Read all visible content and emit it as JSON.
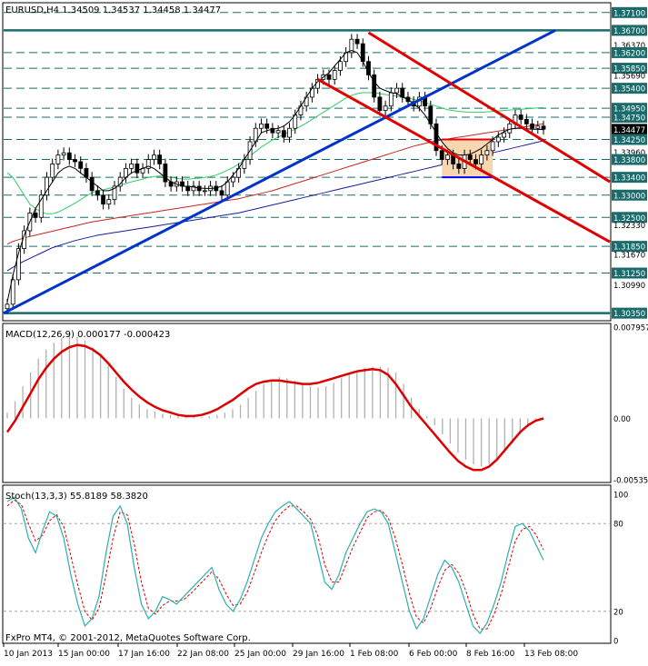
{
  "chart_data": {
    "type": "candlestick",
    "header": {
      "symbol_line": "EURUSD,H4  1.34509 1.34537 1.34458 1.34477"
    },
    "price_panel": {
      "ylim": [
        1.302,
        1.373
      ],
      "current_price": "1.34477",
      "tick_labels": [
        "1.37100",
        "1.36700",
        "1.36370",
        "1.36200",
        "1.35850",
        "1.35690",
        "1.35400",
        "1.34950",
        "1.34750",
        "1.34477",
        "1.34250",
        "1.33960",
        "1.33800",
        "1.33400",
        "1.33000",
        "1.32500",
        "1.32330",
        "1.31850",
        "1.31670",
        "1.31250",
        "1.30990",
        "1.30350"
      ],
      "highlighted_levels": [
        "1.37100",
        "1.36700",
        "1.36200",
        "1.35850",
        "1.35400",
        "1.34950",
        "1.34750",
        "1.34250",
        "1.33800",
        "1.33400",
        "1.33000",
        "1.32500",
        "1.31850",
        "1.31250",
        "1.30350"
      ],
      "colors": {
        "up_trend_line": "#0033cc",
        "channel": "#e00000",
        "ma_fast": "#000000",
        "ma_green": "#33cc66",
        "ma_red": "#cc2222",
        "ma_blue": "#1a1aa0",
        "box_fill": "#f7d7b0",
        "box_border": "#e00000",
        "support_line": "#0000ff"
      },
      "closes": [
        1.3055,
        1.311,
        1.318,
        1.322,
        1.326,
        1.325,
        1.33,
        1.334,
        1.337,
        1.339,
        1.3395,
        1.338,
        1.3375,
        1.336,
        1.334,
        1.331,
        1.33,
        1.328,
        1.329,
        1.332,
        1.334,
        1.336,
        1.337,
        1.335,
        1.336,
        1.338,
        1.339,
        1.337,
        1.333,
        1.332,
        1.333,
        1.332,
        1.331,
        1.332,
        1.331,
        1.331,
        1.332,
        1.331,
        1.33,
        1.333,
        1.334,
        1.336,
        1.338,
        1.342,
        1.345,
        1.346,
        1.345,
        1.344,
        1.3445,
        1.343,
        1.345,
        1.348,
        1.35,
        1.352,
        1.354,
        1.356,
        1.357,
        1.356,
        1.358,
        1.36,
        1.362,
        1.365,
        1.364,
        1.36,
        1.357,
        1.352,
        1.349,
        1.35,
        1.353,
        1.354,
        1.352,
        1.351,
        1.35,
        1.352,
        1.35,
        1.346,
        1.34,
        1.338,
        1.339,
        1.337,
        1.336,
        1.339,
        1.338,
        1.337,
        1.339,
        1.34,
        1.342,
        1.343,
        1.344,
        1.346,
        1.348,
        1.347,
        1.346,
        1.345,
        1.3455,
        1.3448
      ],
      "ma_fast": [
        1.306,
        1.312,
        1.317,
        1.321,
        1.324,
        1.327,
        1.329,
        1.331,
        1.333,
        1.335,
        1.336,
        1.3365,
        1.336,
        1.335,
        1.334,
        1.333,
        1.332,
        1.331,
        1.331,
        1.3315,
        1.3325,
        1.334,
        1.335,
        1.3355,
        1.336,
        1.3365,
        1.336,
        1.335,
        1.334,
        1.333,
        1.3325,
        1.332,
        1.332,
        1.3318,
        1.3316,
        1.3315,
        1.3315,
        1.3316,
        1.332,
        1.333,
        1.3345,
        1.336,
        1.338,
        1.34,
        1.342,
        1.344,
        1.3445,
        1.3448,
        1.345,
        1.3455,
        1.3465,
        1.348,
        1.35,
        1.352,
        1.354,
        1.3555,
        1.3565,
        1.3575,
        1.359,
        1.3605,
        1.362,
        1.3625,
        1.362,
        1.36,
        1.3575,
        1.3555,
        1.354,
        1.3535,
        1.353,
        1.3528,
        1.352,
        1.3515,
        1.3505,
        1.3495,
        1.348,
        1.346,
        1.344,
        1.342,
        1.3405,
        1.3395,
        1.339,
        1.339,
        1.3392,
        1.3398,
        1.3405,
        1.3415,
        1.3425,
        1.3435,
        1.3442,
        1.3448,
        1.345,
        1.345,
        1.3449,
        1.3448,
        1.3448,
        1.3447
      ],
      "ma_green": [
        1.335,
        1.334,
        1.332,
        1.33,
        1.328,
        1.327,
        1.3262,
        1.3258,
        1.3258,
        1.3262,
        1.3268,
        1.3275,
        1.3282,
        1.329,
        1.3298,
        1.3305,
        1.331,
        1.3312,
        1.3315,
        1.3318,
        1.3322,
        1.3326,
        1.333,
        1.3333,
        1.3336,
        1.334,
        1.3342,
        1.3343,
        1.3342,
        1.334,
        1.3338,
        1.3336,
        1.3336,
        1.3337,
        1.3338,
        1.334,
        1.3342,
        1.3345,
        1.335,
        1.3356,
        1.3362,
        1.337,
        1.3378,
        1.3388,
        1.3398,
        1.3408,
        1.3416,
        1.3424,
        1.343,
        1.3436,
        1.3442,
        1.3448,
        1.3455,
        1.3462,
        1.347,
        1.3478,
        1.3486,
        1.3494,
        1.3502,
        1.351,
        1.3518,
        1.3524,
        1.3528,
        1.353,
        1.353,
        1.353,
        1.3528,
        1.3526,
        1.3524,
        1.3522,
        1.352,
        1.3518,
        1.3515,
        1.3512,
        1.3508,
        1.3504,
        1.35,
        1.3496,
        1.3492,
        1.349,
        1.3488,
        1.3487,
        1.3486,
        1.3486,
        1.3486,
        1.3487,
        1.3488,
        1.3489,
        1.349,
        1.3491,
        1.3492,
        1.3493,
        1.3494,
        1.3495,
        1.3496,
        1.3497
      ],
      "ma_red": [
        1.319,
        1.3196,
        1.32,
        1.3204,
        1.3207,
        1.321,
        1.3213,
        1.3216,
        1.3219,
        1.3222,
        1.3225,
        1.3228,
        1.3231,
        1.3234,
        1.3237,
        1.324,
        1.3242,
        1.3244,
        1.3246,
        1.3248,
        1.325,
        1.3252,
        1.3254,
        1.3256,
        1.3258,
        1.326,
        1.3262,
        1.3264,
        1.3266,
        1.3268,
        1.327,
        1.3272,
        1.3274,
        1.3276,
        1.3278,
        1.328,
        1.3282,
        1.3284,
        1.3286,
        1.3288,
        1.329,
        1.3292,
        1.3295,
        1.3298,
        1.3301,
        1.3304,
        1.3307,
        1.331,
        1.3314,
        1.3318,
        1.3322,
        1.3326,
        1.333,
        1.3334,
        1.3338,
        1.3342,
        1.3346,
        1.335,
        1.3354,
        1.3358,
        1.3362,
        1.3366,
        1.337,
        1.3374,
        1.3378,
        1.3382,
        1.3386,
        1.339,
        1.3394,
        1.3398,
        1.3402,
        1.3406,
        1.341,
        1.3413,
        1.3416,
        1.3419,
        1.3422,
        1.3424,
        1.3426,
        1.3428,
        1.343,
        1.3432,
        1.3434,
        1.3436,
        1.3438,
        1.344,
        1.3442,
        1.3444,
        1.3446,
        1.3448,
        1.345,
        1.3452,
        1.3454,
        1.3456,
        1.3458,
        1.346
      ],
      "ma_blue": [
        1.313,
        1.3138,
        1.3145,
        1.3152,
        1.3158,
        1.3164,
        1.317,
        1.3176,
        1.3182,
        1.3186,
        1.319,
        1.3194,
        1.3198,
        1.3201,
        1.3204,
        1.3207,
        1.321,
        1.3212,
        1.3214,
        1.3216,
        1.3218,
        1.322,
        1.3222,
        1.3224,
        1.3226,
        1.3228,
        1.323,
        1.3232,
        1.3234,
        1.3236,
        1.3238,
        1.324,
        1.3242,
        1.3244,
        1.3246,
        1.3248,
        1.325,
        1.3252,
        1.3254,
        1.3256,
        1.3258,
        1.326,
        1.3263,
        1.3266,
        1.3269,
        1.3272,
        1.3275,
        1.3278,
        1.3281,
        1.3284,
        1.3287,
        1.329,
        1.3293,
        1.3296,
        1.3299,
        1.3302,
        1.3305,
        1.3308,
        1.3311,
        1.3314,
        1.3317,
        1.332,
        1.3323,
        1.3326,
        1.3329,
        1.3332,
        1.3335,
        1.3338,
        1.3341,
        1.3344,
        1.3347,
        1.335,
        1.3353,
        1.3356,
        1.3359,
        1.3362,
        1.3365,
        1.3368,
        1.3371,
        1.3374,
        1.3377,
        1.338,
        1.3383,
        1.3386,
        1.3389,
        1.3392,
        1.3395,
        1.3398,
        1.3401,
        1.3404,
        1.3407,
        1.341,
        1.3413,
        1.3416,
        1.3419,
        1.3422
      ]
    },
    "macd_panel": {
      "label": "MACD(12,26,9) 0.000177 -0.000423",
      "tick_labels": [
        "0.007957",
        "0.00",
        "-0.00535"
      ],
      "ylim": [
        -0.00535,
        0.007957
      ],
      "zero": 0.0,
      "histogram": [
        0.0005,
        0.0015,
        0.0028,
        0.004,
        0.0052,
        0.006,
        0.0066,
        0.007,
        0.0072,
        0.0071,
        0.0068,
        0.0062,
        0.0055,
        0.0046,
        0.0036,
        0.0026,
        0.0018,
        0.0012,
        0.0008,
        0.0006,
        0.0004,
        0.0003,
        0.0002,
        0.0001,
        0.0001,
        0.0001,
        0.0002,
        0.0003,
        0.0005,
        0.0008,
        0.0012,
        0.0018,
        0.0024,
        0.003,
        0.0034,
        0.0036,
        0.0035,
        0.0033,
        0.003,
        0.0028,
        0.0027,
        0.0028,
        0.0031,
        0.0035,
        0.0039,
        0.0042,
        0.0044,
        0.0045,
        0.0045,
        0.0044,
        0.004,
        0.003,
        0.0018,
        0.0008,
        0.0002,
        -0.0006,
        -0.0014,
        -0.0022,
        -0.003,
        -0.0036,
        -0.004,
        -0.0042,
        -0.004,
        -0.0036,
        -0.003,
        -0.0022,
        -0.0014,
        -0.0008,
        -0.0003,
        -0.0001
      ],
      "signal": [
        -0.0012,
        -0.0002,
        0.001,
        0.0022,
        0.0034,
        0.0044,
        0.0052,
        0.0058,
        0.0062,
        0.0064,
        0.0063,
        0.006,
        0.0055,
        0.0048,
        0.004,
        0.0032,
        0.0025,
        0.0019,
        0.0014,
        0.001,
        0.0007,
        0.0005,
        0.0003,
        0.0002,
        0.0002,
        0.0003,
        0.0005,
        0.0008,
        0.0012,
        0.0016,
        0.0021,
        0.0026,
        0.003,
        0.0032,
        0.0033,
        0.0033,
        0.0032,
        0.0031,
        0.003,
        0.003,
        0.0031,
        0.0033,
        0.0035,
        0.0037,
        0.0039,
        0.0041,
        0.0042,
        0.0043,
        0.0042,
        0.0038,
        0.003,
        0.002,
        0.001,
        0.0002,
        -0.0006,
        -0.0014,
        -0.0022,
        -0.003,
        -0.0037,
        -0.0042,
        -0.0045,
        -0.0045,
        -0.0042,
        -0.0036,
        -0.0028,
        -0.002,
        -0.0012,
        -0.0006,
        -0.0002,
        0.0
      ]
    },
    "stoch_panel": {
      "label": "Stoch(13,3,3) 55.8189 58.3820",
      "tick_labels": [
        "100",
        "80",
        "20",
        "0"
      ],
      "ylim": [
        0,
        100
      ],
      "main": [
        95,
        98,
        90,
        70,
        60,
        75,
        88,
        85,
        70,
        45,
        25,
        10,
        15,
        30,
        60,
        85,
        92,
        80,
        50,
        25,
        15,
        20,
        30,
        28,
        25,
        30,
        35,
        40,
        45,
        50,
        35,
        25,
        20,
        28,
        40,
        55,
        70,
        80,
        88,
        92,
        95,
        90,
        85,
        80,
        60,
        40,
        35,
        45,
        60,
        70,
        80,
        88,
        90,
        88,
        80,
        60,
        40,
        20,
        8,
        15,
        30,
        45,
        55,
        50,
        40,
        25,
        10,
        5,
        12,
        25,
        40,
        60,
        78,
        80,
        75,
        65,
        55
      ],
      "signal": [
        92,
        96,
        93,
        80,
        68,
        72,
        82,
        86,
        78,
        58,
        38,
        20,
        14,
        22,
        45,
        70,
        88,
        86,
        66,
        40,
        22,
        18,
        24,
        27,
        27,
        28,
        32,
        37,
        42,
        47,
        42,
        32,
        24,
        25,
        33,
        46,
        60,
        72,
        82,
        88,
        92,
        92,
        88,
        83,
        72,
        52,
        40,
        40,
        52,
        64,
        74,
        84,
        88,
        89,
        84,
        70,
        52,
        32,
        16,
        12,
        22,
        36,
        48,
        52,
        46,
        34,
        18,
        8,
        8,
        18,
        32,
        50,
        68,
        76,
        78,
        72,
        62
      ]
    },
    "x_tick_labels": [
      "10 Jan 2013",
      "15 Jan 00:00",
      "17 Jan 16:00",
      "22 Jan 08:00",
      "25 Jan 00:00",
      "29 Jan 16:00",
      "1 Feb 08:00",
      "6 Feb 00:00",
      "8 Feb 16:00",
      "13 Feb 08:00"
    ],
    "footer": "FxPro MT4, © 2001-2012, MetaQuotes Software Corp."
  }
}
